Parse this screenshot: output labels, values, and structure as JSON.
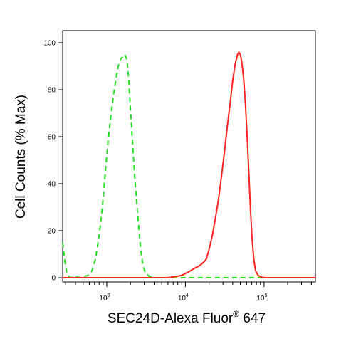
{
  "chart_data": {
    "type": "line",
    "xlabel": "SEC24D-Alexa Fluor",
    "xlabel_superscript": "®",
    "xlabel_suffix": " 647",
    "ylabel": "Cell Counts (% Max)",
    "x_scale": "log",
    "xlim": [
      275,
      450000
    ],
    "ylim": [
      0,
      105
    ],
    "y_ticks": [
      0,
      20,
      40,
      60,
      80,
      100
    ],
    "y_tick_labels": [
      "0",
      "20",
      "40",
      "60",
      "80",
      "100"
    ],
    "x_major_ticks": [
      1000,
      10000,
      100000
    ],
    "x_tick_labels": [
      {
        "base": "10",
        "exp": "3"
      },
      {
        "base": "10",
        "exp": "4"
      },
      {
        "base": "10",
        "exp": "5"
      }
    ],
    "grid": false,
    "series": [
      {
        "color": "#22dd22",
        "style": "dashed",
        "points": [
          [
            275,
            15
          ],
          [
            290,
            8
          ],
          [
            310,
            2
          ],
          [
            340,
            0
          ],
          [
            400,
            0.5
          ],
          [
            470,
            0
          ],
          [
            520,
            0.5
          ],
          [
            580,
            1
          ],
          [
            650,
            3
          ],
          [
            720,
            8
          ],
          [
            800,
            18
          ],
          [
            880,
            30
          ],
          [
            960,
            45
          ],
          [
            1040,
            58
          ],
          [
            1120,
            68
          ],
          [
            1200,
            76
          ],
          [
            1300,
            84
          ],
          [
            1400,
            90
          ],
          [
            1500,
            93
          ],
          [
            1600,
            94
          ],
          [
            1700,
            95
          ],
          [
            1800,
            93
          ],
          [
            1900,
            85
          ],
          [
            2000,
            72
          ],
          [
            2150,
            55
          ],
          [
            2300,
            40
          ],
          [
            2500,
            25
          ],
          [
            2700,
            12
          ],
          [
            2900,
            5
          ],
          [
            3100,
            2
          ],
          [
            3500,
            0.5
          ],
          [
            4000,
            0
          ],
          [
            5000,
            0
          ],
          [
            8000,
            0
          ],
          [
            20000,
            0
          ],
          [
            100000,
            0
          ],
          [
            450000,
            0
          ]
        ]
      },
      {
        "color": "#ff2222",
        "style": "solid",
        "points": [
          [
            275,
            0
          ],
          [
            1000,
            0
          ],
          [
            4000,
            0
          ],
          [
            6000,
            0
          ],
          [
            7500,
            0.5
          ],
          [
            9000,
            1
          ],
          [
            11000,
            2.5
          ],
          [
            13000,
            4
          ],
          [
            15000,
            5
          ],
          [
            17000,
            6.5
          ],
          [
            18500,
            8
          ],
          [
            20000,
            12
          ],
          [
            22000,
            18
          ],
          [
            24000,
            25
          ],
          [
            26000,
            32
          ],
          [
            28000,
            40
          ],
          [
            31000,
            52
          ],
          [
            34000,
            64
          ],
          [
            37000,
            74
          ],
          [
            40000,
            84
          ],
          [
            43000,
            91
          ],
          [
            46000,
            95
          ],
          [
            48000,
            96
          ],
          [
            50000,
            95
          ],
          [
            52000,
            92
          ],
          [
            55000,
            85
          ],
          [
            58000,
            74
          ],
          [
            61000,
            60
          ],
          [
            64000,
            45
          ],
          [
            67000,
            30
          ],
          [
            70000,
            18
          ],
          [
            74000,
            8
          ],
          [
            78000,
            3
          ],
          [
            84000,
            1
          ],
          [
            92000,
            0.3
          ],
          [
            100000,
            0
          ],
          [
            450000,
            0
          ]
        ]
      }
    ]
  }
}
